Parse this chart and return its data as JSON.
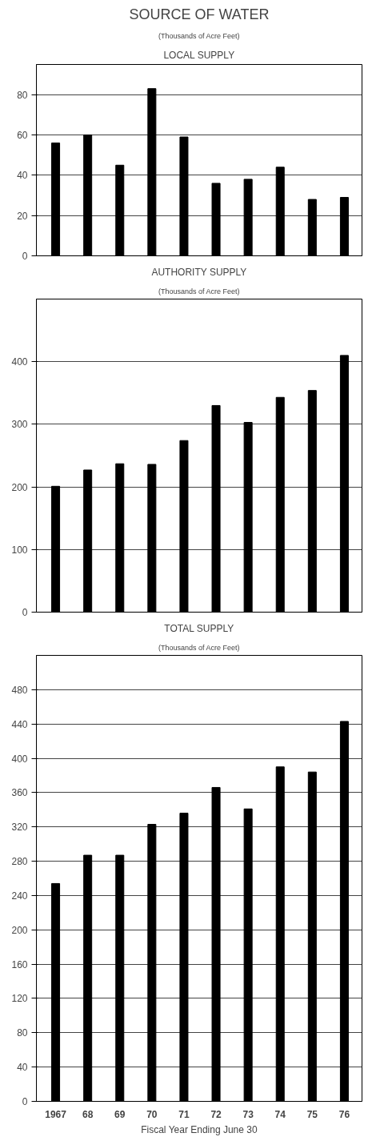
{
  "chart_data": [
    {
      "type": "bar",
      "title": "SOURCE OF WATER",
      "subtitle": "LOCAL SUPPLY",
      "annotations": [
        "(Thousands of Acre Feet)"
      ],
      "categories": [
        "1967",
        "68",
        "69",
        "70",
        "71",
        "72",
        "73",
        "74",
        "75",
        "76"
      ],
      "values": [
        56,
        60,
        45,
        83,
        59,
        36,
        38,
        44,
        28,
        29
      ],
      "color": "#000000",
      "ylim": [
        0,
        95
      ],
      "yticks": [
        0,
        20,
        40,
        60,
        80
      ],
      "grid": "y",
      "tick_labels": "y"
    },
    {
      "type": "bar",
      "title": "AUTHORITY SUPPLY",
      "subtitle": "(Thousands of Acre Feet)",
      "categories": [
        "1967",
        "68",
        "69",
        "70",
        "71",
        "72",
        "73",
        "74",
        "75",
        "76"
      ],
      "values": [
        201,
        227,
        237,
        236,
        274,
        330,
        303,
        343,
        354,
        410
      ],
      "color": "#000000",
      "ylim": [
        0,
        500
      ],
      "yticks": [
        0,
        100,
        200,
        300,
        400
      ],
      "grid": "y",
      "tick_labels": "y"
    },
    {
      "type": "bar",
      "title": "TOTAL SUPPLY",
      "subtitle": "(Thousands of Acre Feet)",
      "xlabel": "Fiscal Year Ending June 30",
      "categories": [
        "1967",
        "68",
        "69",
        "70",
        "71",
        "72",
        "73",
        "74",
        "75",
        "76"
      ],
      "values": [
        254,
        287,
        287,
        323,
        336,
        366,
        341,
        390,
        384,
        443
      ],
      "color": "#000000",
      "ylim": [
        0,
        520
      ],
      "yticks": [
        0,
        40,
        80,
        120,
        160,
        200,
        240,
        280,
        320,
        360,
        400,
        440,
        480
      ],
      "grid": "y"
    }
  ]
}
